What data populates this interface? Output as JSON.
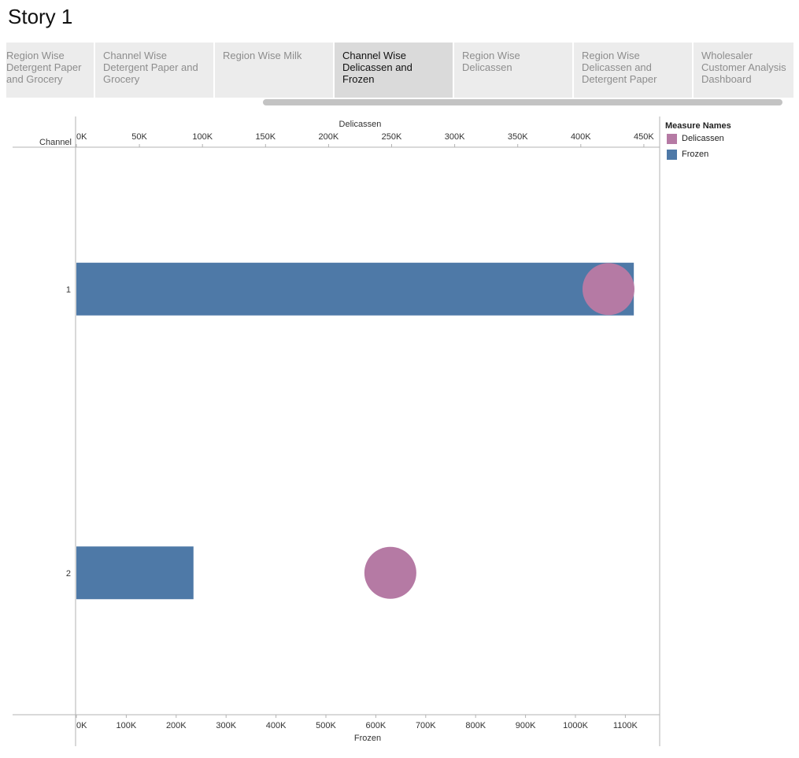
{
  "story": {
    "title": "Story 1"
  },
  "tabs": [
    {
      "label": "Region Wise Detergent Paper and Grocery",
      "active": false
    },
    {
      "label": "Channel Wise Detergent Paper and Grocery",
      "active": false
    },
    {
      "label": "Region Wise Milk",
      "active": false
    },
    {
      "label": "Channel Wise Delicassen and Frozen",
      "active": true
    },
    {
      "label": "Region Wise Delicassen",
      "active": false
    },
    {
      "label": "Region Wise Delicassen and Detergent Paper",
      "active": false
    },
    {
      "label": "Wholesaler Customer Analysis Dashboard",
      "active": false
    }
  ],
  "legend": {
    "title": "Measure Names",
    "items": [
      {
        "label": "Delicassen",
        "color": "#b57aa4"
      },
      {
        "label": "Frozen",
        "color": "#4e79a7"
      }
    ]
  },
  "chart_data": {
    "type": "bar",
    "row_header": "Channel",
    "categories": [
      "1",
      "2"
    ],
    "top_axis": {
      "label": "Delicassen",
      "ticks": [
        "0K",
        "50K",
        "100K",
        "150K",
        "200K",
        "250K",
        "300K",
        "350K",
        "400K",
        "450K"
      ],
      "ylim": [
        0,
        450000
      ]
    },
    "bottom_axis": {
      "label": "Frozen",
      "ticks": [
        "0K",
        "100K",
        "200K",
        "300K",
        "400K",
        "500K",
        "600K",
        "700K",
        "800K",
        "900K",
        "1000K",
        "1100K"
      ],
      "ylim": [
        0,
        1100000
      ]
    },
    "series": [
      {
        "name": "Frozen",
        "mark": "bar",
        "axis": "bottom",
        "color": "#4e79a7",
        "values": [
          1116979,
          234671
        ]
      },
      {
        "name": "Delicassen",
        "mark": "circle",
        "axis": "top",
        "color": "#b57aa4",
        "values": [
          421955,
          248988
        ]
      }
    ]
  }
}
